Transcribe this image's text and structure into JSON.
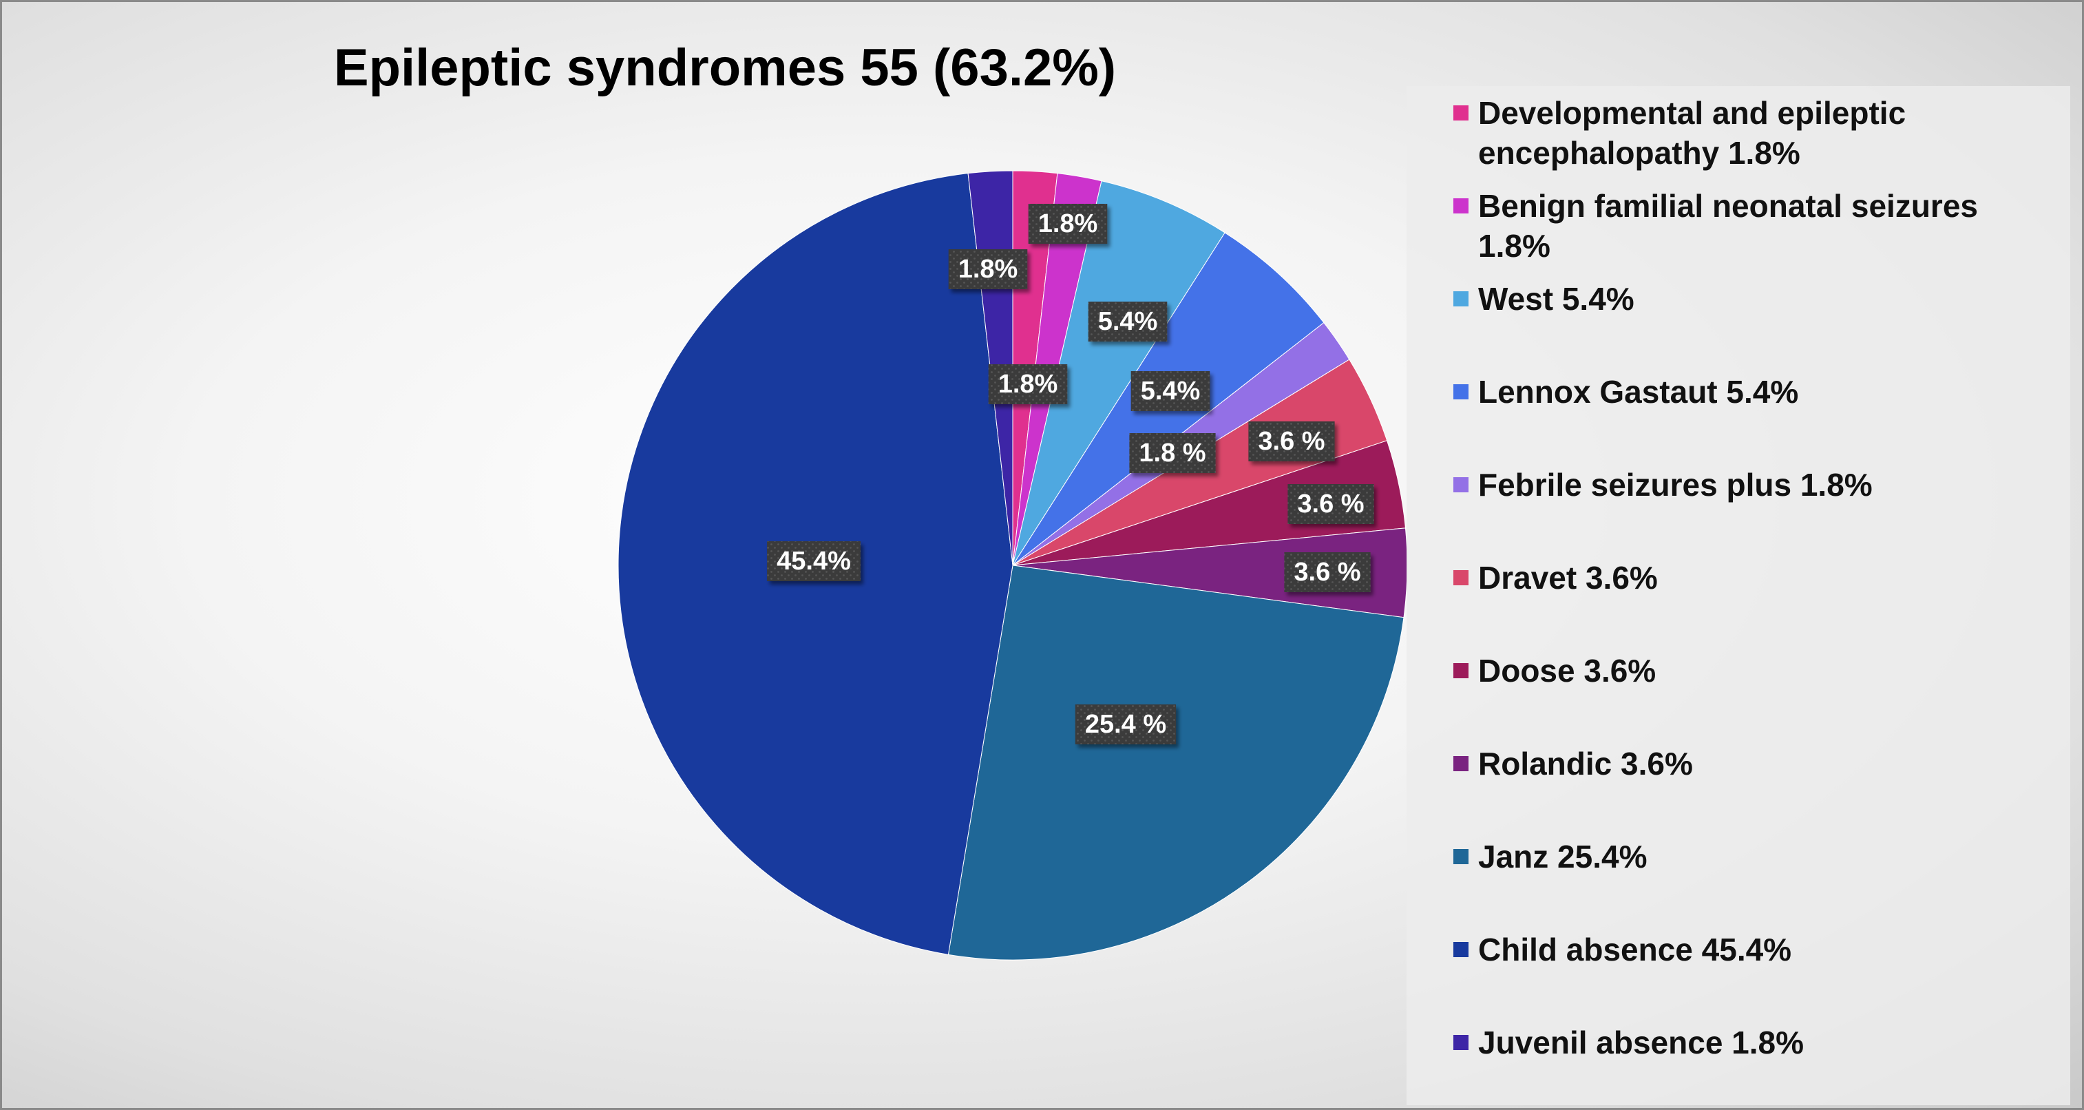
{
  "chart_data": {
    "type": "pie",
    "title": "Epileptic syndromes 55 (63.2%)",
    "legend_position": "right",
    "slices": [
      {
        "name": "Developmental and epileptic encephalopathy 1.8%",
        "value": 1.8,
        "label": "1.8%",
        "color": "#e0308f"
      },
      {
        "name": "Benign familial neonatal seizures 1.8%",
        "value": 1.8,
        "label": "1.8%",
        "color": "#cc33cc"
      },
      {
        "name": "West 5.4%",
        "value": 5.4,
        "label": "5.4%",
        "color": "#4fa8e0"
      },
      {
        "name": "Lennox Gastaut 5.4%",
        "value": 5.4,
        "label": "5.4%",
        "color": "#4472e8"
      },
      {
        "name": "Febrile seizures plus 1.8%",
        "value": 1.8,
        "label": "1.8 %",
        "color": "#9370e6"
      },
      {
        "name": "Dravet 3.6%",
        "value": 3.6,
        "label": "3.6 %",
        "color": "#d9476a"
      },
      {
        "name": "Doose 3.6%",
        "value": 3.6,
        "label": "3.6 %",
        "color": "#9c1b5a"
      },
      {
        "name": "Rolandic 3.6%",
        "value": 3.6,
        "label": "3.6 %",
        "color": "#7a2380"
      },
      {
        "name": "Janz 25.4%",
        "value": 25.4,
        "label": "25.4 %",
        "color": "#1f6797"
      },
      {
        "name": "Child absence 45.4%",
        "value": 45.4,
        "label": "45.4%",
        "color": "#183a9e"
      },
      {
        "name": "Juvenil absence 1.8%",
        "value": 1.8,
        "label": "1.8%",
        "color": "#3d25a6"
      }
    ]
  }
}
